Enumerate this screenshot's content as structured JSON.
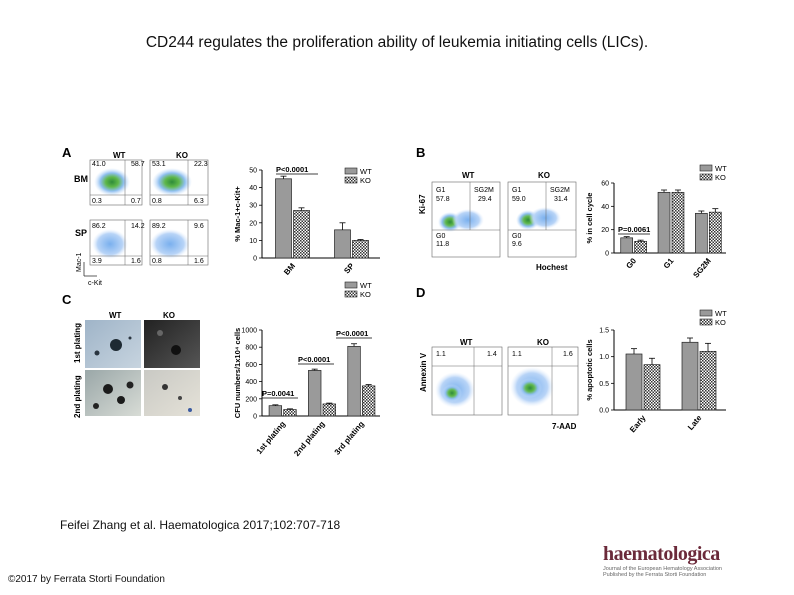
{
  "title": "CD244 regulates the proliferation ability of leukemia initiating cells (LICs).",
  "citation": "Feifei Zhang et al. Haematologica 2017;102:707-718",
  "copyright": "©2017 by Ferrata Storti Foundation",
  "logo": {
    "word": "haematologica",
    "subtitle_line1": "Journal of the European Hematology Association",
    "subtitle_line2": "Published by the Ferrata Storti Foundation"
  },
  "panelA": {
    "letter": "A",
    "col_wt": "WT",
    "col_ko": "KO",
    "row_bm": "BM",
    "row_sp": "SP",
    "y_axis": "Mac-1",
    "x_axis": "c-Kit",
    "bm_wt": [
      "41.0",
      "58.7",
      "0.3",
      "0.7"
    ],
    "bm_ko": [
      "53.1",
      "22.3",
      "0.8",
      "6.3"
    ],
    "sp_wt": [
      "86.2",
      "14.2",
      "3.9",
      "1.6"
    ],
    "sp_ko": [
      "89.2",
      "9.6",
      "0.8",
      "1.6"
    ]
  },
  "panelB": {
    "letter": "B",
    "col_wt": "WT",
    "col_ko": "KO",
    "y_axis": "Ki-67",
    "x_axis": "Hochest",
    "wt": {
      "g1": "G1",
      "g1v": "57.8",
      "sg2m": "SG2M",
      "sg2mv": "29.4",
      "g0": "G0",
      "g0v": "11.8"
    },
    "ko": {
      "g1": "G1",
      "g1v": "59.0",
      "sg2m": "SG2M",
      "sg2mv": "31.4",
      "g0": "G0",
      "g0v": "9.6"
    }
  },
  "panelC": {
    "letter": "C",
    "col_wt": "WT",
    "col_ko": "KO",
    "row1": "1st plating",
    "row2": "2nd plating"
  },
  "panelD": {
    "letter": "D",
    "col_wt": "WT",
    "col_ko": "KO",
    "y_axis": "Annexin V",
    "x_axis": "7-AAD",
    "wt": [
      "1.1",
      "1.4"
    ],
    "ko": [
      "1.1",
      "1.6"
    ]
  },
  "chart_data": [
    {
      "id": "A",
      "type": "bar",
      "categories": [
        "BM",
        "SP"
      ],
      "series": [
        {
          "name": "WT",
          "values": [
            45,
            16
          ]
        },
        {
          "name": "KO",
          "values": [
            27,
            10
          ]
        }
      ],
      "errors": [
        [
          1.5,
          4
        ],
        [
          1.5,
          0.5
        ]
      ],
      "ylabel": "% Mac-1+c-Kit+",
      "ylim": [
        0,
        50
      ],
      "yticks": [
        0,
        10,
        20,
        30,
        40,
        50
      ],
      "annotations": [
        "P<0.0001"
      ],
      "legend": "top-right"
    },
    {
      "id": "B",
      "type": "bar",
      "categories": [
        "G0",
        "G1",
        "SG2M"
      ],
      "series": [
        {
          "name": "WT",
          "values": [
            13,
            52,
            34
          ]
        },
        {
          "name": "KO",
          "values": [
            10,
            52,
            35
          ]
        }
      ],
      "errors": [
        [
          1,
          2,
          2
        ],
        [
          1,
          2,
          3
        ]
      ],
      "ylabel": "% in cell cycle",
      "ylim": [
        0,
        60
      ],
      "yticks": [
        0,
        20,
        40,
        60
      ],
      "annotations": [
        "P=0.0061"
      ],
      "legend": "top-right"
    },
    {
      "id": "C",
      "type": "bar",
      "categories": [
        "1st plating",
        "2nd plating",
        "3rd plating"
      ],
      "series": [
        {
          "name": "WT",
          "values": [
            120,
            530,
            810
          ]
        },
        {
          "name": "KO",
          "values": [
            75,
            140,
            350
          ]
        }
      ],
      "errors": [
        [
          10,
          15,
          30
        ],
        [
          8,
          10,
          15
        ]
      ],
      "ylabel": "CFU numbers/1x10⁴ cells",
      "ylim": [
        0,
        1000
      ],
      "yticks": [
        0,
        200,
        400,
        600,
        800,
        1000
      ],
      "annotations": [
        "P=0.0041",
        "P<0.0001",
        "P<0.0001"
      ],
      "legend": "top-right"
    },
    {
      "id": "D",
      "type": "bar",
      "categories": [
        "Early",
        "Late"
      ],
      "series": [
        {
          "name": "WT",
          "values": [
            1.05,
            1.27
          ]
        },
        {
          "name": "KO",
          "values": [
            0.85,
            1.1
          ]
        }
      ],
      "errors": [
        [
          0.1,
          0.08
        ],
        [
          0.12,
          0.15
        ]
      ],
      "ylabel": "% apoptotic cells",
      "ylim": [
        0,
        1.5
      ],
      "yticks": [
        "0.0",
        "0.5",
        "1.0",
        "1.5"
      ],
      "legend": "top-right"
    }
  ]
}
